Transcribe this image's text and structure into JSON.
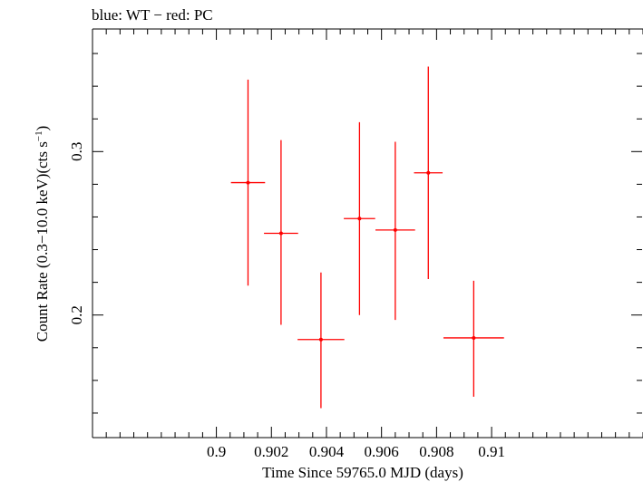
{
  "chart_data": {
    "type": "scatter",
    "title": "blue: WT − red: PC",
    "xlabel": "Time Since 59765.0 MJD (days)",
    "ylabel": "Count Rate (0.3−10.0 keV)(cts s",
    "ylabel_sup": "−1",
    "ylabel_close": ")",
    "xlim": [
      0.8955,
      0.9155
    ],
    "ylim": [
      0.125,
      0.375
    ],
    "x_ticks": [
      0.9,
      0.902,
      0.904,
      0.906,
      0.908,
      0.91
    ],
    "x_tick_labels": [
      "0.9",
      "0.902",
      "0.904",
      "0.906",
      "0.908",
      "0.91"
    ],
    "y_ticks": [
      0.2,
      0.3
    ],
    "y_tick_labels": [
      "0.2",
      "0.3"
    ],
    "grid": false,
    "colors": {
      "PC": "#ff0000",
      "axis": "#000000"
    },
    "series": [
      {
        "color": "#ff0000",
        "points": [
          {
            "x": 0.90115,
            "xerr": 0.00062,
            "y": 0.281,
            "ylo": 0.218,
            "yhi": 0.344
          },
          {
            "x": 0.90235,
            "xerr": 0.00062,
            "y": 0.25,
            "ylo": 0.194,
            "yhi": 0.307
          },
          {
            "x": 0.9038,
            "xerr": 0.00085,
            "y": 0.185,
            "ylo": 0.143,
            "yhi": 0.226
          },
          {
            "x": 0.9052,
            "xerr": 0.00057,
            "y": 0.259,
            "ylo": 0.2,
            "yhi": 0.318
          },
          {
            "x": 0.9065,
            "xerr": 0.00072,
            "y": 0.252,
            "ylo": 0.197,
            "yhi": 0.306
          },
          {
            "x": 0.9077,
            "xerr": 0.00052,
            "y": 0.287,
            "ylo": 0.222,
            "yhi": 0.352
          },
          {
            "x": 0.90935,
            "xerr": 0.0011,
            "y": 0.186,
            "ylo": 0.15,
            "yhi": 0.221
          }
        ]
      }
    ]
  }
}
